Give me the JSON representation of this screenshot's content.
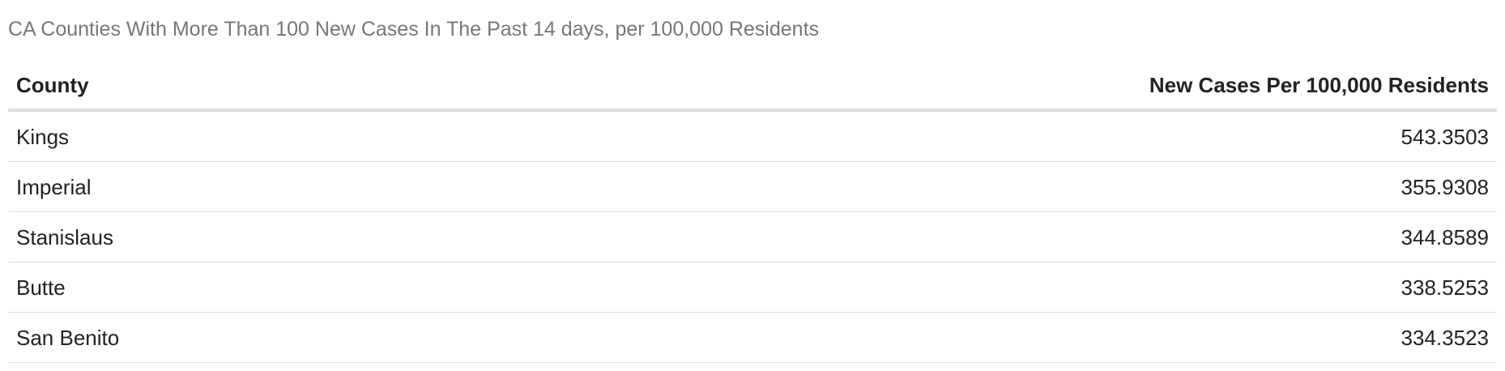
{
  "chart_data": {
    "type": "table",
    "title": "CA Counties With More Than 100 New Cases In The Past 14 days, per 100,000 Residents",
    "columns": [
      "County",
      "New Cases Per 100,000 Residents"
    ],
    "rows": [
      {
        "county": "Kings",
        "value": "543.3503"
      },
      {
        "county": "Imperial",
        "value": "355.9308"
      },
      {
        "county": "Stanislaus",
        "value": "344.8589"
      },
      {
        "county": "Butte",
        "value": "338.5253"
      },
      {
        "county": "San Benito",
        "value": "334.3523"
      }
    ]
  }
}
